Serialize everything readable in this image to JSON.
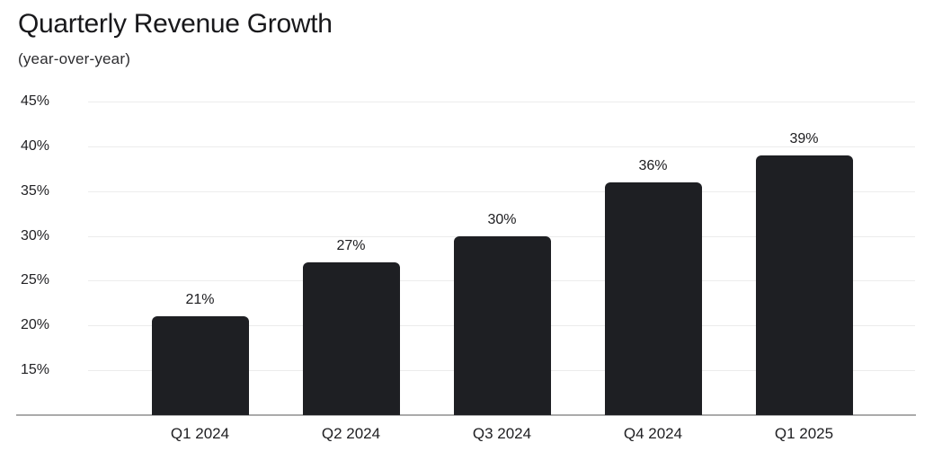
{
  "header": {
    "title": "Quarterly Revenue Growth",
    "subtitle": "(year-over-year)"
  },
  "colors": {
    "bar": "#1e1f23",
    "gridline": "#ececec",
    "axis": "#ababab",
    "title_text": "#18181b",
    "label_text": "#202023"
  },
  "chart_data": {
    "type": "bar",
    "title": "Quarterly Revenue Growth",
    "subtitle": "(year-over-year)",
    "categories": [
      "Q1 2024",
      "Q2 2024",
      "Q3 2024",
      "Q4 2024",
      "Q1 2025"
    ],
    "values": [
      21,
      27,
      30,
      36,
      39
    ],
    "value_labels": [
      "21%",
      "27%",
      "30%",
      "36%",
      "39%"
    ],
    "xlabel": "",
    "ylabel": "",
    "y_ticks": [
      {
        "value": 45,
        "label": "45%"
      },
      {
        "value": 40,
        "label": "40%"
      },
      {
        "value": 35,
        "label": "35%"
      },
      {
        "value": 30,
        "label": "30%"
      },
      {
        "value": 25,
        "label": "25%"
      },
      {
        "value": 20,
        "label": "20%"
      },
      {
        "value": 15,
        "label": "15%"
      }
    ],
    "ylim": [
      10,
      45
    ],
    "grid": true,
    "legend": false,
    "bar_color": "#1e1f23"
  }
}
